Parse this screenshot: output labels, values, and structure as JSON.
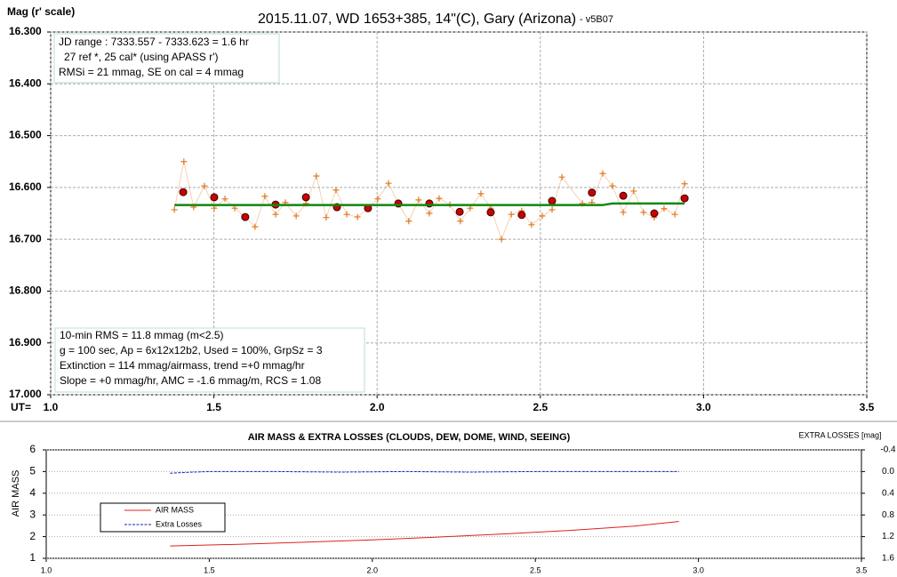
{
  "chart_data": [
    {
      "type": "scatter",
      "title": "2015.11.07, WD 1653+385, 14\"(C), Gary (Arizona)",
      "subtitle": "- v5B07",
      "y_label": "Mag (r' scale)",
      "x_label": "UT=",
      "xlim": [
        1.0,
        3.5
      ],
      "xticks": [
        {
          "value": 1.0,
          "label": "1.0"
        },
        1.5,
        {
          "value": 2.0,
          "label": "2.0"
        },
        2.5,
        {
          "value": 3.0,
          "label": "3.0"
        },
        3.5
      ],
      "ylim": [
        16.3,
        17.0
      ],
      "y_reversed": true,
      "yticks": [
        {
          "value": 16.3,
          "label": "16.300"
        },
        {
          "value": 16.4,
          "label": "16.400"
        },
        {
          "value": 16.5,
          "label": "16.500"
        },
        {
          "value": 16.6,
          "label": "16.600"
        },
        {
          "value": 16.7,
          "label": "16.700"
        },
        {
          "value": 16.8,
          "label": "16.800"
        },
        {
          "value": 16.9,
          "label": "16.900"
        },
        {
          "value": 17.0,
          "label": "17.000"
        }
      ],
      "grid": true,
      "text_boxes": [
        [
          "JD range : 7333.557 - 7333.623 = 1.6 hr",
          "27 ref *, 25 cal* (using APASS r')",
          "RMSi = 21 mmag, SE on cal = 4 mmag"
        ],
        [
          "10-min RMS = 11.8 mmag (m<2.5)",
          "g = 100 sec, Ap = 6x12x12b2, Used = 100%, GrpSz = 3",
          "Extinction = 114 mmag/airmass, trend =+0 mmag/hr",
          "Slope = +0 mmag/hr, AMC = -1.6 mmag/m, RCS = 1.08"
        ]
      ],
      "series": [
        {
          "color": "#e07a20",
          "marker": "plus",
          "line": true,
          "x": [
            1.379,
            1.408,
            1.438,
            1.471,
            1.501,
            1.534,
            1.564,
            1.596,
            1.626,
            1.656,
            1.689,
            1.719,
            1.752,
            1.782,
            1.814,
            1.844,
            1.874,
            1.907,
            1.94,
            1.972,
            2.002,
            2.035,
            2.065,
            2.097,
            2.127,
            2.16,
            2.19,
            2.223,
            2.255,
            2.285,
            2.318,
            2.348,
            2.381,
            2.411,
            2.443,
            2.473,
            2.506,
            2.536,
            2.566,
            2.629,
            2.658,
            2.691,
            2.721,
            2.754,
            2.786,
            2.816,
            2.849,
            2.879,
            2.912,
            2.942
          ],
          "values": [
            16.643,
            16.55,
            16.638,
            16.597,
            16.64,
            16.622,
            16.64,
            16.657,
            16.676,
            16.617,
            16.652,
            16.629,
            16.655,
            16.631,
            16.578,
            16.658,
            16.605,
            16.652,
            16.657,
            16.64,
            16.622,
            16.592,
            16.631,
            16.665,
            16.624,
            16.65,
            16.621,
            16.633,
            16.665,
            16.64,
            16.612,
            16.64,
            16.7,
            16.652,
            16.645,
            16.672,
            16.655,
            16.643,
            16.58,
            16.631,
            16.629,
            16.573,
            16.597,
            16.648,
            16.607,
            16.648,
            16.658,
            16.641,
            16.652,
            16.593
          ]
        },
        {
          "color": "#cc0000",
          "marker": "dot",
          "line": false,
          "x": [
            1.406,
            1.501,
            1.596,
            1.689,
            1.782,
            1.877,
            1.972,
            2.065,
            2.16,
            2.253,
            2.348,
            2.443,
            2.536,
            2.658,
            2.754,
            2.849,
            2.942
          ],
          "values": [
            16.609,
            16.619,
            16.657,
            16.633,
            16.619,
            16.638,
            16.64,
            16.631,
            16.631,
            16.647,
            16.648,
            16.653,
            16.626,
            16.61,
            16.616,
            16.65,
            16.621
          ]
        },
        {
          "color": "#118811",
          "marker": "none",
          "line": true,
          "x": [
            1.379,
            2.69,
            2.72,
            2.942
          ],
          "values": [
            16.634,
            16.634,
            16.631,
            16.631
          ]
        }
      ]
    },
    {
      "type": "line",
      "title": "AIR MASS & EXTRA LOSSES (CLOUDS, DEW, DOME, WIND, SEEING)",
      "y_label": "AIR MASS",
      "y2_label": "EXTRA LOSSES [mag]",
      "xlim": [
        1.0,
        3.5
      ],
      "xticks": [
        {
          "value": 1.0,
          "label": "1.0"
        },
        1.5,
        {
          "value": 2.0,
          "label": "2.0"
        },
        2.5,
        {
          "value": 3.0,
          "label": "3.0"
        },
        3.5
      ],
      "ylim": [
        1,
        6
      ],
      "yticks": [
        1,
        2,
        3,
        4,
        5,
        6
      ],
      "y2lim": [
        -0.4,
        1.6
      ],
      "y2_reversed": true,
      "y2ticks": [
        -0.4,
        {
          "value": 0.0,
          "label": "0.0"
        },
        0.4,
        0.8,
        1.2,
        1.6
      ],
      "grid": true,
      "legend": "left",
      "series": [
        {
          "name": "AIR MASS",
          "color": "#e02020",
          "x": [
            1.38,
            1.6,
            1.8,
            2.0,
            2.2,
            2.4,
            2.6,
            2.8,
            2.94
          ],
          "values": [
            1.57,
            1.65,
            1.75,
            1.85,
            1.98,
            2.12,
            2.28,
            2.48,
            2.7
          ]
        },
        {
          "name": "Extra Losses",
          "color": "#1020c0",
          "axis": "y2",
          "dashed": true,
          "x": [
            1.38,
            1.45,
            1.5,
            1.7,
            1.9,
            2.1,
            2.3,
            2.5,
            2.7,
            2.94
          ],
          "values": [
            0.03,
            0.01,
            0.0,
            0.0,
            0.01,
            0.0,
            0.01,
            0.0,
            0.0,
            0.0
          ]
        }
      ]
    }
  ]
}
